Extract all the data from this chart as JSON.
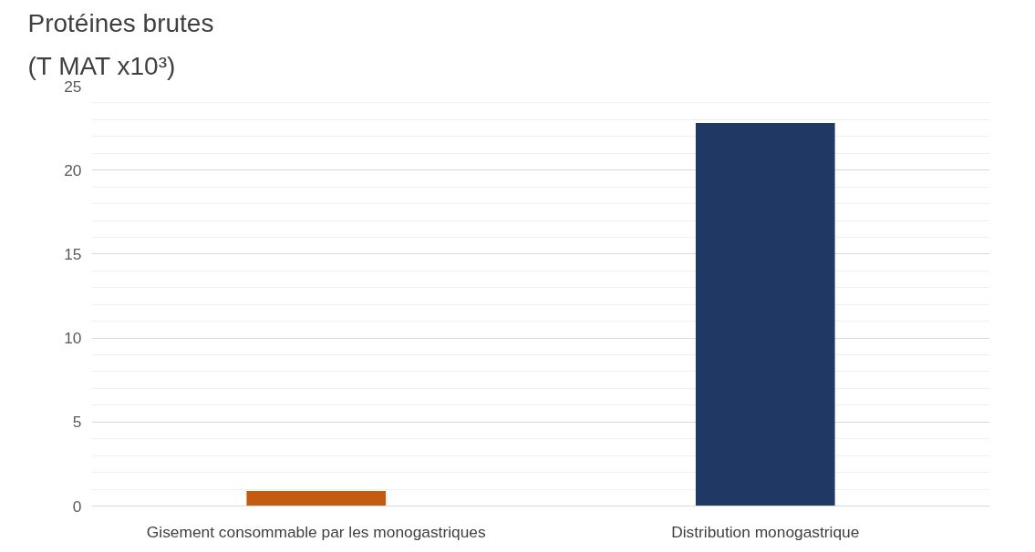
{
  "chart_data": {
    "type": "bar",
    "title": "Protéines brutes\n(T MAT x10³)",
    "categories": [
      "Gisement consommable par les monogastriques",
      "Distribution monogastrique"
    ],
    "values": [
      0.9,
      22.8
    ],
    "colors": [
      "#c55a11",
      "#203864"
    ],
    "ylim": [
      0,
      25
    ],
    "yticks": [
      0,
      {
        "value": 1,
        "label": null
      },
      {
        "value": 2,
        "label": null
      },
      {
        "value": 3,
        "label": null
      },
      {
        "value": 4,
        "label": null
      },
      5,
      {
        "value": 6,
        "label": null
      },
      {
        "value": 7,
        "label": null
      },
      {
        "value": 8,
        "label": null
      },
      {
        "value": 9,
        "label": null
      },
      10,
      {
        "value": 11,
        "label": null
      },
      {
        "value": 12,
        "label": null
      },
      {
        "value": 13,
        "label": null
      },
      {
        "value": 14,
        "label": null
      },
      15,
      {
        "value": 16,
        "label": null
      },
      {
        "value": 17,
        "label": null
      },
      {
        "value": 18,
        "label": null
      },
      {
        "value": 19,
        "label": null
      },
      20,
      {
        "value": 21,
        "label": null
      },
      {
        "value": 22,
        "label": null
      },
      {
        "value": 23,
        "label": null
      },
      {
        "value": 24,
        "label": null
      },
      25
    ],
    "grid": "y"
  }
}
